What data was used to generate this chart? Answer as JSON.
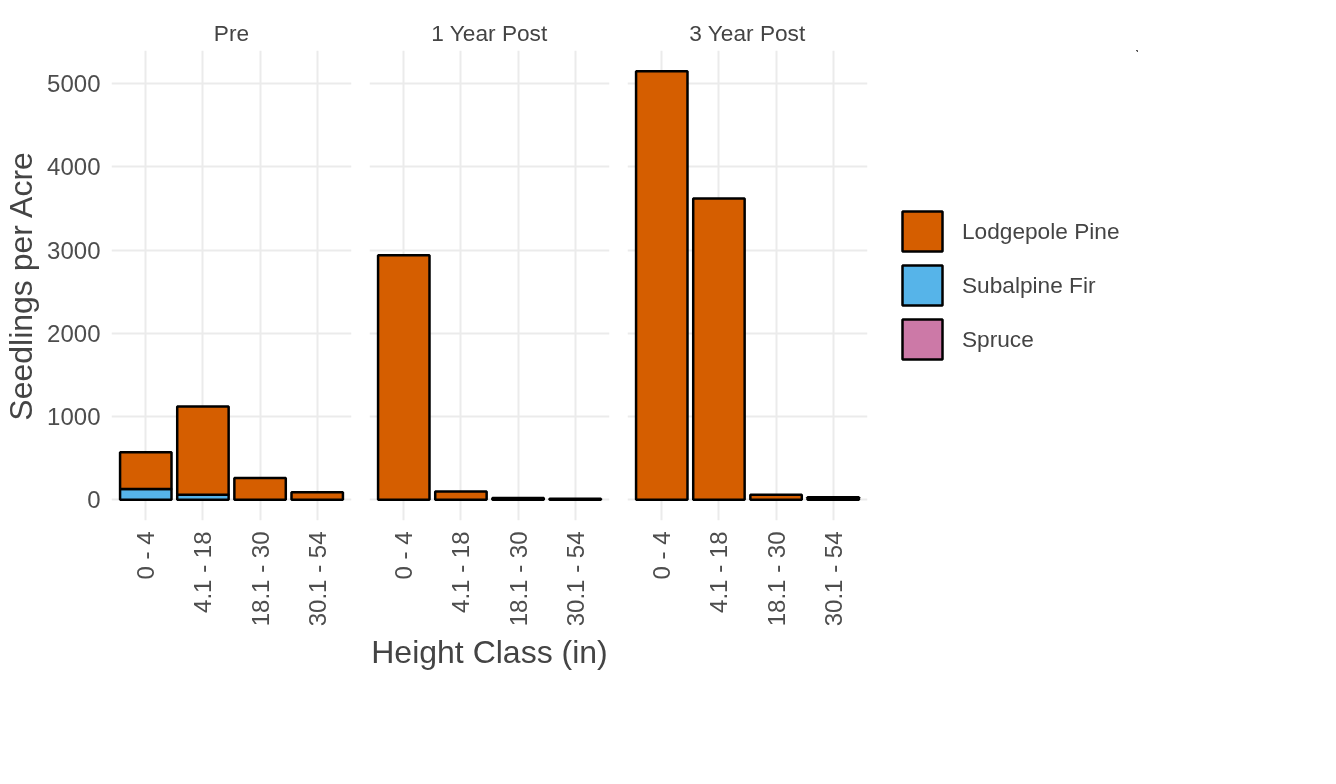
{
  "chart_data": [
    {
      "type": "bar",
      "title": "Pre",
      "ylabel": "Seedlings per Acre",
      "categories": [
        "0 - 4",
        "4.1 - 18",
        "18.1 - 30",
        "30.1 - 54"
      ],
      "stacked": true,
      "ylim": [
        -250,
        5400
      ],
      "yticks": [
        0,
        1000,
        2000,
        3000,
        4000,
        5000
      ],
      "grid": true,
      "series": [
        {
          "color": "#56b4e9",
          "values": [
            130,
            60,
            null,
            null
          ]
        },
        {
          "color": "#d55e00",
          "values": [
            440,
            1060,
            260,
            90
          ]
        }
      ]
    },
    {
      "type": "bar",
      "title": "1 Year Post",
      "xlabel": "Height Class (in)",
      "categories": [
        "0 - 4",
        "4.1 - 18",
        "18.1 - 30",
        "30.1 - 54"
      ],
      "stacked": true,
      "ylim": [
        -250,
        5400
      ],
      "yticks": [
        0,
        1000,
        2000,
        3000,
        4000,
        5000
      ],
      "grid": true,
      "tick_labels": "x",
      "series": [
        {
          "color": "#d55e00",
          "values": [
            2940,
            100,
            20,
            10
          ]
        }
      ]
    },
    {
      "type": "bar",
      "title": "3 Year Post",
      "categories": [
        "0 - 4",
        "4.1 - 18",
        "18.1 - 30",
        "30.1 - 54"
      ],
      "stacked": true,
      "ylim": [
        -250,
        5400
      ],
      "yticks": [
        0,
        1000,
        2000,
        3000,
        4000,
        5000
      ],
      "grid": true,
      "legend": "right",
      "tick_labels": "x",
      "series": [
        {
          "name": "Lodgepole Pine",
          "color": "#d55e00",
          "values": [
            5150,
            3620,
            60,
            30
          ]
        },
        {
          "name": "Subalpine Fir",
          "color": "#56b4e9",
          "values": [
            null,
            null,
            null,
            null
          ]
        },
        {
          "name": "Spruce",
          "color": "#cc79a7",
          "values": [
            null,
            null,
            null,
            null
          ]
        }
      ]
    }
  ]
}
